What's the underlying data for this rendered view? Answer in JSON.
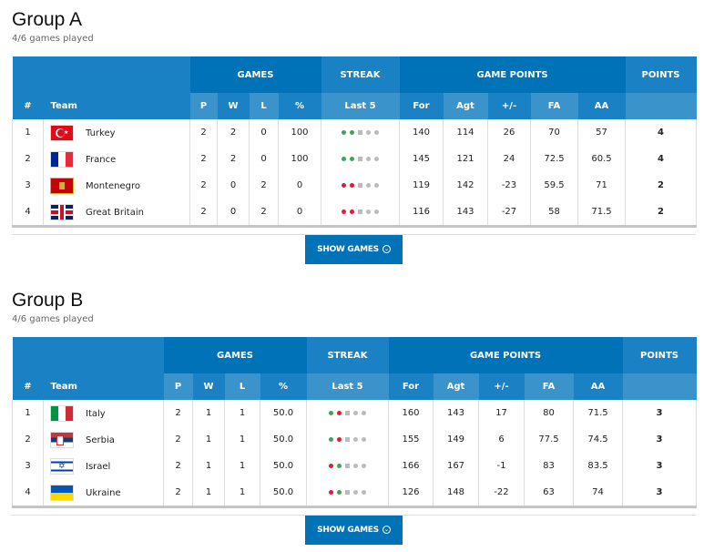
{
  "header_labels": {
    "games": "GAMES",
    "streak": "STREAK",
    "game_points": "GAME POINTS",
    "points": "POINTS",
    "num": "#",
    "team": "Team",
    "p": "P",
    "w": "W",
    "l": "L",
    "pct": "%",
    "last5": "Last 5",
    "for": "For",
    "agt": "Agt",
    "diff": "+/-",
    "fa": "FA",
    "aa": "AA"
  },
  "show_games": "SHOW GAMES",
  "colors": {
    "win": "#3aa65a",
    "loss": "#e3183a",
    "header": "#1a82c4",
    "header_dark": "#0072b8"
  },
  "groups": [
    {
      "title": "Group A",
      "subtitle": "4/6 games played",
      "rows": [
        {
          "rank": "1",
          "team": "Turkey",
          "flag": "turkey",
          "p": "2",
          "w": "2",
          "l": "0",
          "pct": "100",
          "streak": [
            "W",
            "W"
          ],
          "for": "140",
          "agt": "114",
          "diff": "26",
          "fa": "70",
          "aa": "57",
          "pts": "4"
        },
        {
          "rank": "2",
          "team": "France",
          "flag": "france",
          "p": "2",
          "w": "2",
          "l": "0",
          "pct": "100",
          "streak": [
            "W",
            "W"
          ],
          "for": "145",
          "agt": "121",
          "diff": "24",
          "fa": "72.5",
          "aa": "60.5",
          "pts": "4"
        },
        {
          "rank": "3",
          "team": "Montenegro",
          "flag": "montenegro",
          "p": "2",
          "w": "0",
          "l": "2",
          "pct": "0",
          "streak": [
            "L",
            "L"
          ],
          "for": "119",
          "agt": "142",
          "diff": "-23",
          "fa": "59.5",
          "aa": "71",
          "pts": "2"
        },
        {
          "rank": "4",
          "team": "Great Britain",
          "flag": "gb",
          "p": "2",
          "w": "0",
          "l": "2",
          "pct": "0",
          "streak": [
            "L",
            "L"
          ],
          "for": "116",
          "agt": "143",
          "diff": "-27",
          "fa": "58",
          "aa": "71.5",
          "pts": "2"
        }
      ]
    },
    {
      "title": "Group B",
      "subtitle": "4/6 games played",
      "rows": [
        {
          "rank": "1",
          "team": "Italy",
          "flag": "italy",
          "p": "2",
          "w": "1",
          "l": "1",
          "pct": "50.0",
          "streak": [
            "W",
            "L"
          ],
          "for": "160",
          "agt": "143",
          "diff": "17",
          "fa": "80",
          "aa": "71.5",
          "pts": "3"
        },
        {
          "rank": "2",
          "team": "Serbia",
          "flag": "serbia",
          "p": "2",
          "w": "1",
          "l": "1",
          "pct": "50.0",
          "streak": [
            "W",
            "L"
          ],
          "for": "155",
          "agt": "149",
          "diff": "6",
          "fa": "77.5",
          "aa": "74.5",
          "pts": "3"
        },
        {
          "rank": "3",
          "team": "Israel",
          "flag": "israel",
          "p": "2",
          "w": "1",
          "l": "1",
          "pct": "50.0",
          "streak": [
            "L",
            "W"
          ],
          "for": "166",
          "agt": "167",
          "diff": "-1",
          "fa": "83",
          "aa": "83.5",
          "pts": "3"
        },
        {
          "rank": "4",
          "team": "Ukraine",
          "flag": "ukraine",
          "p": "2",
          "w": "1",
          "l": "1",
          "pct": "50.0",
          "streak": [
            "L",
            "W"
          ],
          "for": "126",
          "agt": "148",
          "diff": "-22",
          "fa": "63",
          "aa": "74",
          "pts": "3"
        }
      ]
    }
  ]
}
